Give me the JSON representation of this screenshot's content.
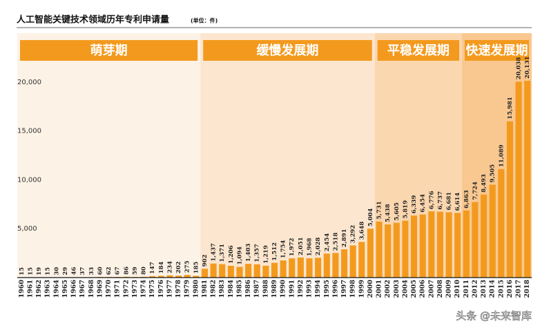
{
  "chart_data": {
    "type": "bar",
    "title": "人工智能关键技术领域历年专利申请量",
    "subtitle": "(单位：件)",
    "categories": [
      "1960",
      "1961",
      "1962",
      "1963",
      "1964",
      "1965",
      "1966",
      "1967",
      "1968",
      "1969",
      "1970",
      "1971",
      "1972",
      "1973",
      "1974",
      "1975",
      "1976",
      "1977",
      "1978",
      "1979",
      "1980",
      "1981",
      "1982",
      "1983",
      "1984",
      "1985",
      "1986",
      "1987",
      "1988",
      "1989",
      "1990",
      "1991",
      "1992",
      "1993",
      "1994",
      "1995",
      "1996",
      "1997",
      "1998",
      "1999",
      "2000",
      "2001",
      "2002",
      "2003",
      "2004",
      "2005",
      "2006",
      "2007",
      "2008",
      "2009",
      "2010",
      "2011",
      "2012",
      "2013",
      "2014",
      "2015",
      "2016",
      "2017",
      "2018"
    ],
    "values": [
      15,
      15,
      19,
      15,
      30,
      29,
      46,
      37,
      33,
      60,
      62,
      67,
      86,
      59,
      80,
      147,
      184,
      234,
      202,
      275,
      185,
      902,
      1437,
      1371,
      1206,
      1094,
      1403,
      1357,
      1219,
      1512,
      1754,
      1972,
      2051,
      1968,
      2028,
      2454,
      2518,
      2891,
      3292,
      3648,
      5004,
      5731,
      5438,
      5605,
      5819,
      6339,
      6454,
      6776,
      6737,
      6681,
      6614,
      6863,
      7724,
      8493,
      9505,
      11089,
      15981,
      20038,
      20131
    ],
    "value_labels": [
      "15",
      "15",
      "19",
      "15",
      "30",
      "29",
      "46",
      "37",
      "33",
      "60",
      "62",
      "67",
      "86",
      "59",
      "80",
      "147",
      "184",
      "234",
      "202",
      "275",
      "185",
      "902",
      "1,437",
      "1,371",
      "1,206",
      "1,094",
      "1,403",
      "1,357",
      "1,219",
      "1,512",
      "1,754",
      "1,972",
      "2,051",
      "1,968",
      "2,028",
      "2,454",
      "2,518",
      "2,891",
      "3,292",
      "3,648",
      "5,004",
      "5,731",
      "5,438",
      "5,605",
      "5,819",
      "6,339",
      "6,454",
      "6,776",
      "6,737",
      "6,681",
      "6,614",
      "6,863",
      "7,724",
      "8,493",
      "9,505",
      "11,089",
      "15,981",
      "20,038",
      "20,131"
    ],
    "color": "#f39a1e",
    "ylim": [
      0,
      25000
    ],
    "yticks": [
      {
        "value": 5000,
        "label": "5,000"
      },
      {
        "value": 10000,
        "label": "10,000"
      },
      {
        "value": 15000,
        "label": "15,000"
      },
      {
        "value": 20000,
        "label": "20,000"
      }
    ],
    "grid": false,
    "phases": [
      {
        "label": "萌芽期",
        "from": "1960",
        "to": "1980",
        "color": "#fdf2e6"
      },
      {
        "label": "缓慢发展期",
        "from": "1981",
        "to": "2000",
        "color": "#fce6cf"
      },
      {
        "label": "平稳发展期",
        "from": "2001",
        "to": "2010",
        "color": "#fbd7b0"
      },
      {
        "label": "快速发展期",
        "from": "2011",
        "to": "2018",
        "color": "#f9c890"
      }
    ],
    "watermark": "头条 @未来智库"
  }
}
